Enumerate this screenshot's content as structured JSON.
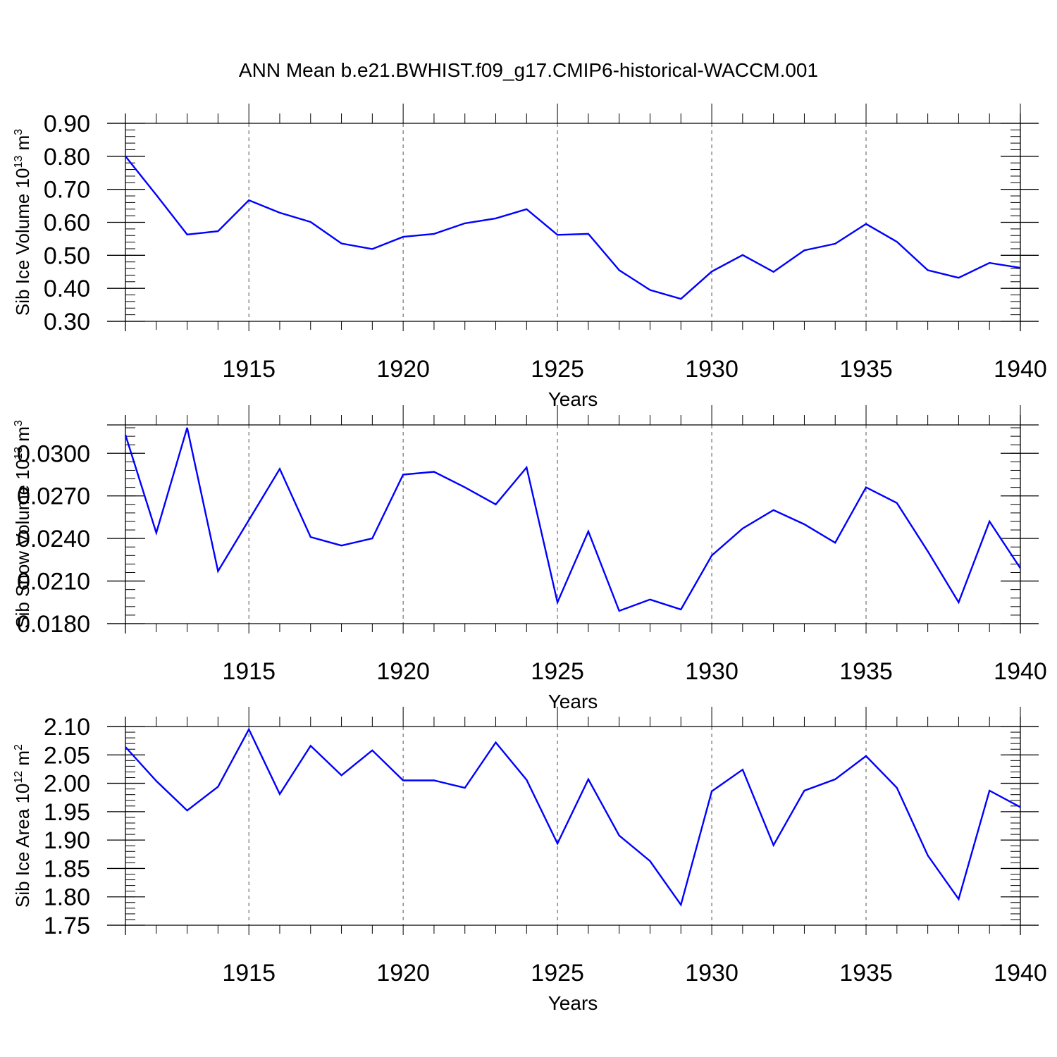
{
  "title": "ANN Mean b.e21.BWHIST.f09_g17.CMIP6-historical-WACCM.001",
  "colors": {
    "line": "#0000ff",
    "axis": "#000000",
    "grid": "#555555"
  },
  "chart_data": [
    {
      "type": "line",
      "ylabel": "Sib Ice Volume 10",
      "ylabel_sup": "13",
      "ylabel_unit": "m",
      "ylabel_unit_sup": "3",
      "xlabel": "Years",
      "x": [
        1911,
        1912,
        1913,
        1914,
        1915,
        1916,
        1917,
        1918,
        1919,
        1920,
        1921,
        1922,
        1923,
        1924,
        1925,
        1926,
        1927,
        1928,
        1929,
        1930,
        1931,
        1932,
        1933,
        1934,
        1935,
        1936,
        1937,
        1938,
        1939,
        1940
      ],
      "series": [
        {
          "values": [
            0.8,
            0.683,
            0.563,
            0.573,
            0.667,
            0.629,
            0.601,
            0.536,
            0.519,
            0.556,
            0.565,
            0.597,
            0.612,
            0.64,
            0.562,
            0.565,
            0.455,
            0.395,
            0.368,
            0.451,
            0.501,
            0.45,
            0.515,
            0.535,
            0.595,
            0.541,
            0.455,
            0.432,
            0.477,
            0.462
          ]
        }
      ],
      "xlim": [
        1911,
        1940
      ],
      "ylim": [
        0.3,
        0.9
      ],
      "yticks": [
        "0.90",
        "0.80",
        "0.70",
        "0.60",
        "0.50",
        "0.40",
        "0.30"
      ],
      "ytick_values": [
        0.9,
        0.8,
        0.7,
        0.6,
        0.5,
        0.4,
        0.3
      ],
      "xticks": [
        "1915",
        "1920",
        "1925",
        "1930",
        "1935",
        "1940"
      ],
      "xtick_values": [
        1915,
        1920,
        1925,
        1930,
        1935,
        1940
      ],
      "grid": "dashed vertical at major x ticks"
    },
    {
      "type": "line",
      "ylabel": "Sib Snow Volume 10",
      "ylabel_sup": "13",
      "ylabel_unit": "m",
      "ylabel_unit_sup": "3",
      "xlabel": "Years",
      "x": [
        1911,
        1912,
        1913,
        1914,
        1915,
        1916,
        1917,
        1918,
        1919,
        1920,
        1921,
        1922,
        1923,
        1924,
        1925,
        1926,
        1927,
        1928,
        1929,
        1930,
        1931,
        1932,
        1933,
        1934,
        1935,
        1936,
        1937,
        1938,
        1939,
        1940
      ],
      "series": [
        {
          "values": [
            0.0313,
            0.0244,
            0.0318,
            0.0217,
            0.0253,
            0.0289,
            0.0241,
            0.0235,
            0.024,
            0.0285,
            0.0287,
            0.0276,
            0.0264,
            0.029,
            0.0195,
            0.0245,
            0.0189,
            0.0197,
            0.019,
            0.0228,
            0.0247,
            0.026,
            0.025,
            0.0237,
            0.0276,
            0.0265,
            0.0231,
            0.0195,
            0.0252,
            0.0219
          ]
        }
      ],
      "xlim": [
        1911,
        1940
      ],
      "ylim": [
        0.018,
        0.032
      ],
      "yticks": [
        "0.0300",
        "0.0270",
        "0.0240",
        "0.0210",
        "0.0180"
      ],
      "ytick_values": [
        0.03,
        0.027,
        0.024,
        0.021,
        0.018
      ],
      "xticks": [
        "1915",
        "1920",
        "1925",
        "1930",
        "1935",
        "1940"
      ],
      "xtick_values": [
        1915,
        1920,
        1925,
        1930,
        1935,
        1940
      ],
      "grid": "dashed vertical at major x ticks"
    },
    {
      "type": "line",
      "ylabel": "Sib Ice Area 10",
      "ylabel_sup": "12",
      "ylabel_unit": "m",
      "ylabel_unit_sup": "2",
      "xlabel": "Years",
      "x": [
        1911,
        1912,
        1913,
        1914,
        1915,
        1916,
        1917,
        1918,
        1919,
        1920,
        1921,
        1922,
        1923,
        1924,
        1925,
        1926,
        1927,
        1928,
        1929,
        1930,
        1931,
        1932,
        1933,
        1934,
        1935,
        1936,
        1937,
        1938,
        1939,
        1940
      ],
      "series": [
        {
          "values": [
            2.064,
            2.004,
            1.952,
            1.994,
            2.095,
            1.981,
            2.066,
            2.014,
            2.058,
            2.005,
            2.005,
            1.992,
            2.072,
            2.006,
            1.894,
            2.007,
            1.908,
            1.863,
            1.786,
            1.986,
            2.024,
            1.891,
            1.987,
            2.007,
            2.048,
            1.992,
            1.873,
            1.796,
            1.987,
            1.958
          ]
        }
      ],
      "xlim": [
        1911,
        1940
      ],
      "ylim": [
        1.75,
        2.1
      ],
      "yticks": [
        "2.10",
        "2.05",
        "2.00",
        "1.95",
        "1.90",
        "1.85",
        "1.80",
        "1.75"
      ],
      "ytick_values": [
        2.1,
        2.05,
        2.0,
        1.95,
        1.9,
        1.85,
        1.8,
        1.75
      ],
      "xticks": [
        "1915",
        "1920",
        "1925",
        "1930",
        "1935",
        "1940"
      ],
      "xtick_values": [
        1915,
        1920,
        1925,
        1930,
        1935,
        1940
      ],
      "grid": "dashed vertical at major x ticks"
    }
  ]
}
